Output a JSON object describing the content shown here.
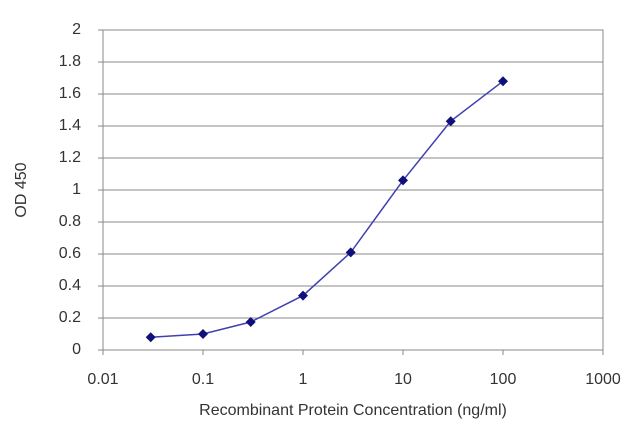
{
  "chart_data": {
    "type": "line",
    "x_label": "Recombinant Protein Concentration (ng/ml)",
    "y_label": "OD 450",
    "x": [
      0.03,
      0.1,
      0.3,
      1,
      3,
      10,
      30,
      100
    ],
    "series": [
      {
        "name": "OD 450",
        "color": "#4040b0",
        "marker_color": "#10107a",
        "values": [
          0.08,
          0.1,
          0.175,
          0.34,
          0.61,
          1.06,
          1.43,
          1.68
        ]
      }
    ],
    "xlim": [
      0.01,
      1000
    ],
    "xticks": [
      0.01,
      0.1,
      1,
      10,
      100,
      1000
    ],
    "log_x": true,
    "ylim": [
      0,
      2
    ],
    "yticks": [
      0,
      0.2,
      0.4,
      0.6,
      0.8,
      1,
      1.2,
      1.4,
      1.6,
      1.8,
      2
    ],
    "grid": true
  }
}
